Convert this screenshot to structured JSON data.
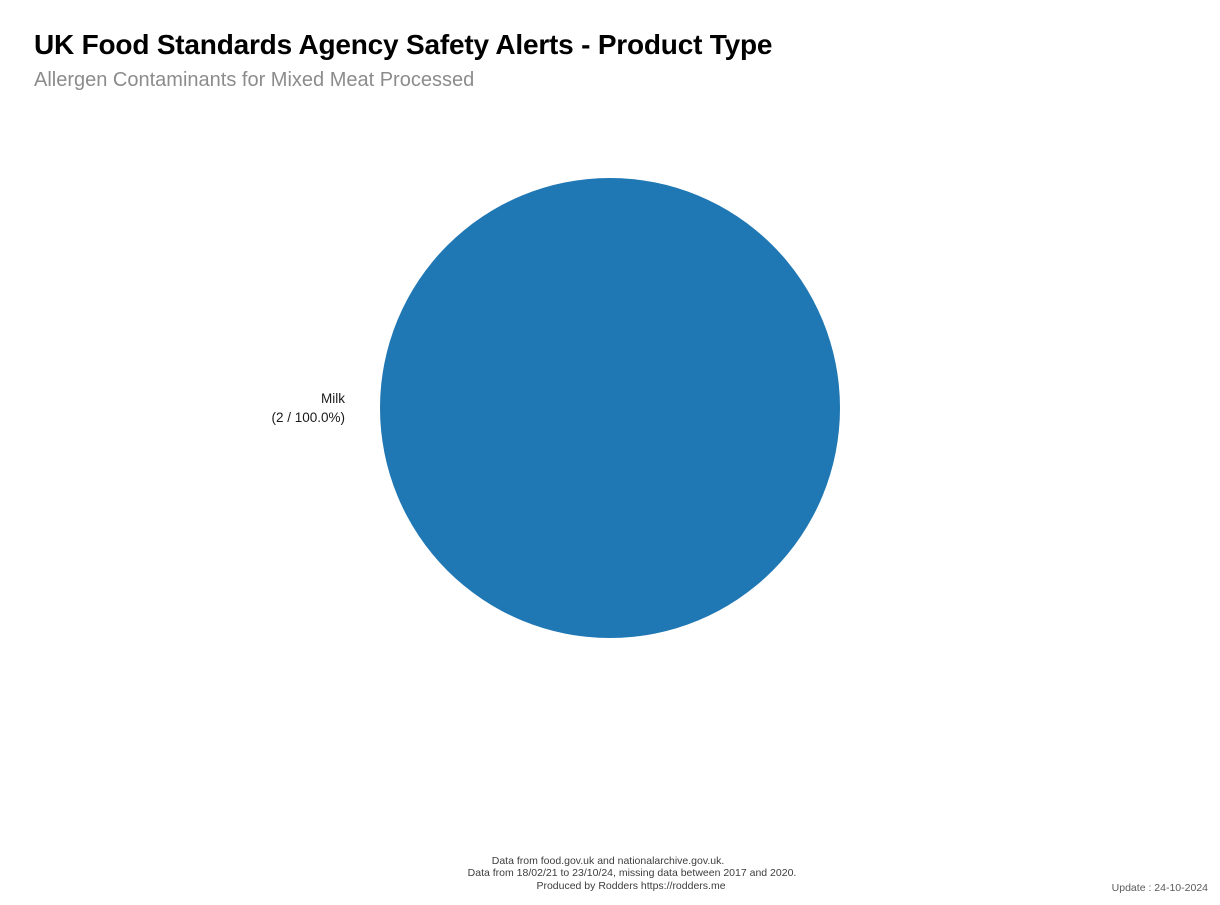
{
  "header": {
    "title": "UK Food Standards Agency Safety Alerts - Product Type",
    "subtitle": "Allergen Contaminants for Mixed Meat Processed"
  },
  "chart_data": {
    "type": "pie",
    "title": "UK Food Standards Agency Safety Alerts - Product Type",
    "subtitle": "Allergen Contaminants for Mixed Meat Processed",
    "total_count": 2,
    "legend_position": "none",
    "labels_outside": true,
    "slices": [
      {
        "label": "Milk",
        "value": 2,
        "percent": 100.0,
        "display_label": "Milk",
        "display_value": "(2 / 100.0%)",
        "color": "#1f77b4"
      }
    ]
  },
  "footer": {
    "lines": [
      "Data from food.gov.uk and nationalarchive.gov.uk.",
      "Data from 18/02/21 to 23/10/24, missing data between 2017 and 2020.",
      "Produced by Rodders https://rodders.me"
    ],
    "update_text": "Update : 24-10-2024"
  },
  "colors": {
    "title": "#000000",
    "subtitle": "#8c8c8c",
    "pie_slice": "#1f77b4",
    "footer_text": "#3d3d3d",
    "update_text": "#5a5a5a",
    "background": "#ffffff"
  }
}
